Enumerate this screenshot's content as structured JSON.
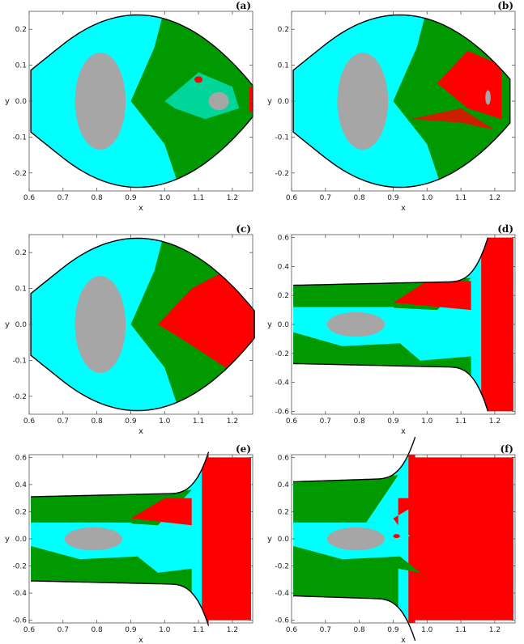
{
  "colors": {
    "cyan": "#00ffff",
    "green": "#009900",
    "red": "#ff0000",
    "gray": "#a6a6a6",
    "boundary": "#000000",
    "frame": "#555555"
  },
  "chart_data": [
    {
      "type": "heatmap",
      "panel": "(a)",
      "xlabel": "x",
      "ylabel": "y",
      "xlim": [
        0.6,
        1.26
      ],
      "ylim": [
        -0.25,
        0.25
      ],
      "xticks": [
        "0.6",
        "0.7",
        "0.8",
        "0.9",
        "1.0",
        "1.1",
        "1.2"
      ],
      "yticks": [
        "-0.2",
        "-0.1",
        "0.0",
        "0.1",
        "0.2"
      ],
      "legend": "none"
    },
    {
      "type": "heatmap",
      "panel": "(b)",
      "xlabel": "x",
      "ylabel": "y",
      "xlim": [
        0.6,
        1.26
      ],
      "ylim": [
        -0.25,
        0.25
      ],
      "xticks": [
        "0.6",
        "0.7",
        "0.8",
        "0.9",
        "1.0",
        "1.1",
        "1.2"
      ],
      "yticks": [
        "-0.2",
        "-0.1",
        "0.0",
        "0.1",
        "0.2"
      ],
      "legend": "none"
    },
    {
      "type": "heatmap",
      "panel": "(c)",
      "xlabel": "x",
      "ylabel": "y",
      "xlim": [
        0.6,
        1.26
      ],
      "ylim": [
        -0.25,
        0.25
      ],
      "xticks": [
        "0.6",
        "0.7",
        "0.8",
        "0.9",
        "1.0",
        "1.1",
        "1.2"
      ],
      "yticks": [
        "-0.2",
        "-0.1",
        "0.0",
        "0.1",
        "0.2"
      ],
      "legend": "none"
    },
    {
      "type": "heatmap",
      "panel": "(d)",
      "xlabel": "x",
      "ylabel": "y",
      "xlim": [
        0.6,
        1.26
      ],
      "ylim": [
        -0.62,
        0.62
      ],
      "xticks": [
        "0.6",
        "0.7",
        "0.8",
        "0.9",
        "1.0",
        "1.1",
        "1.2"
      ],
      "yticks": [
        "-0.6",
        "-0.4",
        "-0.2",
        "0.0",
        "0.2",
        "0.4",
        "0.6"
      ],
      "legend": "none"
    },
    {
      "type": "heatmap",
      "panel": "(e)",
      "xlabel": "x",
      "ylabel": "y",
      "xlim": [
        0.6,
        1.26
      ],
      "ylim": [
        -0.62,
        0.62
      ],
      "xticks": [
        "0.6",
        "0.7",
        "0.8",
        "0.9",
        "1.0",
        "1.1",
        "1.2"
      ],
      "yticks": [
        "-0.6",
        "-0.4",
        "-0.2",
        "0.0",
        "0.2",
        "0.4",
        "0.6"
      ],
      "legend": "none"
    },
    {
      "type": "heatmap",
      "panel": "(f)",
      "xlabel": "x",
      "ylabel": "y",
      "xlim": [
        0.6,
        1.26
      ],
      "ylim": [
        -0.62,
        0.62
      ],
      "xticks": [
        "0.6",
        "0.7",
        "0.8",
        "0.9",
        "1.0",
        "1.1",
        "1.2"
      ],
      "yticks": [
        "-0.6",
        "-0.4",
        "-0.2",
        "0.0",
        "0.2",
        "0.4",
        "0.6"
      ],
      "legend": "none"
    }
  ]
}
